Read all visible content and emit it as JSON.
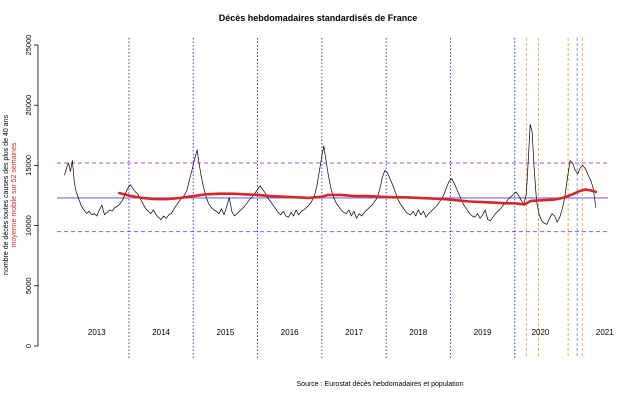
{
  "chart_data": {
    "type": "line",
    "title": "Décès hebdomadaires standardisés de France",
    "ylabel_primary": "nombre de décès toutes causes des plus de 40 ans",
    "ylabel_secondary": "moyenne mobile sur 52 semaines",
    "source": "Source : Eurostat décès hebdomadaires et population",
    "ylim": [
      0,
      25000
    ],
    "yticks": [
      0,
      5000,
      10000,
      15000,
      20000,
      25000
    ],
    "year_labels": [
      "2013",
      "2014",
      "2015",
      "2016",
      "2017",
      "2018",
      "2019",
      "2020",
      "2021"
    ],
    "year_label_positions": [
      2013.5,
      2014.5,
      2015.5,
      2016.5,
      2017.5,
      2018.5,
      2019.5,
      2020.4,
      2021.4
    ],
    "x_range": [
      2013.0,
      2021.3
    ],
    "year_separators": [
      2014.0,
      2015.0,
      2016.0,
      2017.0,
      2018.0,
      2019.0,
      2020.0
    ],
    "reference_lines": [
      {
        "name": "upper",
        "value": 15200,
        "color": "#9b59d0",
        "dash": true
      },
      {
        "name": "mean",
        "value": 12300,
        "color": "#7b68ee",
        "dash": false
      },
      {
        "name": "lower",
        "value": 9500,
        "color": "#9b59d0",
        "dash": true
      }
    ],
    "event_lines": [
      {
        "x": 2020.18,
        "color": "#e8a33c"
      },
      {
        "x": 2020.37,
        "color": "#e8a33c"
      },
      {
        "x": 2020.83,
        "color": "#e8a33c"
      },
      {
        "x": 2020.97,
        "color": "#6495ed"
      },
      {
        "x": 2021.05,
        "color": "#e8a33c"
      }
    ],
    "series": [
      {
        "name": "Décès hebdomadaires",
        "color": "#000000",
        "points": [
          [
            2013.0,
            14200
          ],
          [
            2013.03,
            14800
          ],
          [
            2013.06,
            15200
          ],
          [
            2013.09,
            14500
          ],
          [
            2013.12,
            15400
          ],
          [
            2013.15,
            13600
          ],
          [
            2013.18,
            12800
          ],
          [
            2013.22,
            12200
          ],
          [
            2013.26,
            11600
          ],
          [
            2013.3,
            11300
          ],
          [
            2013.34,
            11000
          ],
          [
            2013.38,
            11200
          ],
          [
            2013.42,
            10900
          ],
          [
            2013.46,
            11000
          ],
          [
            2013.5,
            10800
          ],
          [
            2013.54,
            11300
          ],
          [
            2013.58,
            11700
          ],
          [
            2013.62,
            10900
          ],
          [
            2013.66,
            11100
          ],
          [
            2013.7,
            11300
          ],
          [
            2013.74,
            11200
          ],
          [
            2013.78,
            11500
          ],
          [
            2013.82,
            11600
          ],
          [
            2013.86,
            11800
          ],
          [
            2013.9,
            12100
          ],
          [
            2013.94,
            12600
          ],
          [
            2013.98,
            13100
          ],
          [
            2014.02,
            13400
          ],
          [
            2014.06,
            13100
          ],
          [
            2014.1,
            12800
          ],
          [
            2014.14,
            12600
          ],
          [
            2014.18,
            12200
          ],
          [
            2014.22,
            11800
          ],
          [
            2014.26,
            11400
          ],
          [
            2014.3,
            11200
          ],
          [
            2014.34,
            11000
          ],
          [
            2014.38,
            11300
          ],
          [
            2014.42,
            10900
          ],
          [
            2014.46,
            10700
          ],
          [
            2014.5,
            10500
          ],
          [
            2014.54,
            10800
          ],
          [
            2014.58,
            10600
          ],
          [
            2014.62,
            10900
          ],
          [
            2014.66,
            11000
          ],
          [
            2014.7,
            11400
          ],
          [
            2014.74,
            11700
          ],
          [
            2014.78,
            12000
          ],
          [
            2014.82,
            12300
          ],
          [
            2014.86,
            12500
          ],
          [
            2014.9,
            12900
          ],
          [
            2014.94,
            13800
          ],
          [
            2014.98,
            14600
          ],
          [
            2015.02,
            15500
          ],
          [
            2015.06,
            16300
          ],
          [
            2015.09,
            15200
          ],
          [
            2015.12,
            14200
          ],
          [
            2015.16,
            13200
          ],
          [
            2015.2,
            12400
          ],
          [
            2015.24,
            11800
          ],
          [
            2015.28,
            11500
          ],
          [
            2015.32,
            11300
          ],
          [
            2015.36,
            11200
          ],
          [
            2015.4,
            11000
          ],
          [
            2015.44,
            11400
          ],
          [
            2015.48,
            10900
          ],
          [
            2015.52,
            11600
          ],
          [
            2015.56,
            12300
          ],
          [
            2015.6,
            11200
          ],
          [
            2015.64,
            10800
          ],
          [
            2015.68,
            11000
          ],
          [
            2015.72,
            11200
          ],
          [
            2015.76,
            11400
          ],
          [
            2015.8,
            11600
          ],
          [
            2015.84,
            11900
          ],
          [
            2015.88,
            12200
          ],
          [
            2015.92,
            12400
          ],
          [
            2015.96,
            12700
          ],
          [
            2016.0,
            13000
          ],
          [
            2016.04,
            13300
          ],
          [
            2016.08,
            13000
          ],
          [
            2016.12,
            12700
          ],
          [
            2016.16,
            12300
          ],
          [
            2016.2,
            12000
          ],
          [
            2016.24,
            11700
          ],
          [
            2016.28,
            11400
          ],
          [
            2016.32,
            11100
          ],
          [
            2016.36,
            10900
          ],
          [
            2016.4,
            11200
          ],
          [
            2016.44,
            10800
          ],
          [
            2016.48,
            10700
          ],
          [
            2016.52,
            11100
          ],
          [
            2016.56,
            10800
          ],
          [
            2016.6,
            11300
          ],
          [
            2016.64,
            10900
          ],
          [
            2016.68,
            11200
          ],
          [
            2016.72,
            11300
          ],
          [
            2016.76,
            11500
          ],
          [
            2016.8,
            11700
          ],
          [
            2016.84,
            12000
          ],
          [
            2016.88,
            12400
          ],
          [
            2016.92,
            13200
          ],
          [
            2016.96,
            14500
          ],
          [
            2017.0,
            15800
          ],
          [
            2017.03,
            16600
          ],
          [
            2017.06,
            15600
          ],
          [
            2017.1,
            14200
          ],
          [
            2017.14,
            13100
          ],
          [
            2017.18,
            12400
          ],
          [
            2017.22,
            11900
          ],
          [
            2017.26,
            11600
          ],
          [
            2017.3,
            11300
          ],
          [
            2017.34,
            11100
          ],
          [
            2017.38,
            11000
          ],
          [
            2017.42,
            11300
          ],
          [
            2017.46,
            10800
          ],
          [
            2017.5,
            11200
          ],
          [
            2017.54,
            10600
          ],
          [
            2017.58,
            11000
          ],
          [
            2017.62,
            10800
          ],
          [
            2017.66,
            11100
          ],
          [
            2017.7,
            11300
          ],
          [
            2017.74,
            11500
          ],
          [
            2017.78,
            11700
          ],
          [
            2017.82,
            12000
          ],
          [
            2017.86,
            12300
          ],
          [
            2017.9,
            13000
          ],
          [
            2017.94,
            14000
          ],
          [
            2017.98,
            14600
          ],
          [
            2018.02,
            14400
          ],
          [
            2018.06,
            13900
          ],
          [
            2018.1,
            13400
          ],
          [
            2018.14,
            12800
          ],
          [
            2018.18,
            12200
          ],
          [
            2018.22,
            11800
          ],
          [
            2018.26,
            11500
          ],
          [
            2018.3,
            11200
          ],
          [
            2018.34,
            11000
          ],
          [
            2018.38,
            10900
          ],
          [
            2018.42,
            11200
          ],
          [
            2018.46,
            10800
          ],
          [
            2018.5,
            11300
          ],
          [
            2018.54,
            10900
          ],
          [
            2018.58,
            11200
          ],
          [
            2018.62,
            10700
          ],
          [
            2018.66,
            11000
          ],
          [
            2018.7,
            11200
          ],
          [
            2018.74,
            11400
          ],
          [
            2018.78,
            11600
          ],
          [
            2018.82,
            11900
          ],
          [
            2018.86,
            12200
          ],
          [
            2018.9,
            12600
          ],
          [
            2018.94,
            13200
          ],
          [
            2018.98,
            13700
          ],
          [
            2019.02,
            13900
          ],
          [
            2019.06,
            13500
          ],
          [
            2019.1,
            13000
          ],
          [
            2019.14,
            12500
          ],
          [
            2019.18,
            12000
          ],
          [
            2019.22,
            11600
          ],
          [
            2019.26,
            11300
          ],
          [
            2019.3,
            11000
          ],
          [
            2019.34,
            10800
          ],
          [
            2019.38,
            10700
          ],
          [
            2019.42,
            11000
          ],
          [
            2019.46,
            10600
          ],
          [
            2019.5,
            10900
          ],
          [
            2019.54,
            11300
          ],
          [
            2019.58,
            10500
          ],
          [
            2019.62,
            10400
          ],
          [
            2019.66,
            10700
          ],
          [
            2019.7,
            11000
          ],
          [
            2019.74,
            11200
          ],
          [
            2019.78,
            11400
          ],
          [
            2019.82,
            11700
          ],
          [
            2019.86,
            11900
          ],
          [
            2019.9,
            12200
          ],
          [
            2019.94,
            12400
          ],
          [
            2019.98,
            12600
          ],
          [
            2020.02,
            12800
          ],
          [
            2020.06,
            12500
          ],
          [
            2020.1,
            12100
          ],
          [
            2020.14,
            11800
          ],
          [
            2020.18,
            12600
          ],
          [
            2020.21,
            15500
          ],
          [
            2020.24,
            18400
          ],
          [
            2020.27,
            17800
          ],
          [
            2020.3,
            14800
          ],
          [
            2020.34,
            12000
          ],
          [
            2020.38,
            10900
          ],
          [
            2020.42,
            10400
          ],
          [
            2020.46,
            10200
          ],
          [
            2020.5,
            10100
          ],
          [
            2020.54,
            10600
          ],
          [
            2020.58,
            11000
          ],
          [
            2020.62,
            10800
          ],
          [
            2020.66,
            10300
          ],
          [
            2020.7,
            10700
          ],
          [
            2020.74,
            11400
          ],
          [
            2020.78,
            12400
          ],
          [
            2020.82,
            14000
          ],
          [
            2020.86,
            15400
          ],
          [
            2020.9,
            15200
          ],
          [
            2020.94,
            14600
          ],
          [
            2020.98,
            14300
          ],
          [
            2021.02,
            14800
          ],
          [
            2021.06,
            15000
          ],
          [
            2021.1,
            14700
          ],
          [
            2021.14,
            14200
          ],
          [
            2021.18,
            13800
          ],
          [
            2021.22,
            13100
          ],
          [
            2021.26,
            11500
          ]
        ]
      },
      {
        "name": "moyenne mobile sur 52 semaines",
        "color": "#d62728",
        "points": [
          [
            2013.85,
            12700
          ],
          [
            2014.0,
            12500
          ],
          [
            2014.2,
            12300
          ],
          [
            2014.4,
            12200
          ],
          [
            2014.6,
            12200
          ],
          [
            2014.8,
            12300
          ],
          [
            2015.0,
            12450
          ],
          [
            2015.2,
            12600
          ],
          [
            2015.4,
            12650
          ],
          [
            2015.6,
            12650
          ],
          [
            2015.8,
            12600
          ],
          [
            2016.0,
            12550
          ],
          [
            2016.2,
            12450
          ],
          [
            2016.4,
            12400
          ],
          [
            2016.6,
            12350
          ],
          [
            2016.8,
            12300
          ],
          [
            2017.0,
            12400
          ],
          [
            2017.1,
            12550
          ],
          [
            2017.3,
            12550
          ],
          [
            2017.5,
            12450
          ],
          [
            2017.7,
            12450
          ],
          [
            2017.9,
            12400
          ],
          [
            2018.1,
            12350
          ],
          [
            2018.3,
            12350
          ],
          [
            2018.5,
            12300
          ],
          [
            2018.7,
            12250
          ],
          [
            2018.9,
            12200
          ],
          [
            2019.1,
            12100
          ],
          [
            2019.3,
            12000
          ],
          [
            2019.5,
            11950
          ],
          [
            2019.7,
            11900
          ],
          [
            2019.85,
            11850
          ],
          [
            2020.0,
            11850
          ],
          [
            2020.15,
            11750
          ],
          [
            2020.25,
            12050
          ],
          [
            2020.4,
            12100
          ],
          [
            2020.6,
            12150
          ],
          [
            2020.75,
            12300
          ],
          [
            2020.9,
            12600
          ],
          [
            2021.0,
            12850
          ],
          [
            2021.1,
            13000
          ],
          [
            2021.2,
            12900
          ],
          [
            2021.26,
            12800
          ]
        ]
      }
    ]
  }
}
